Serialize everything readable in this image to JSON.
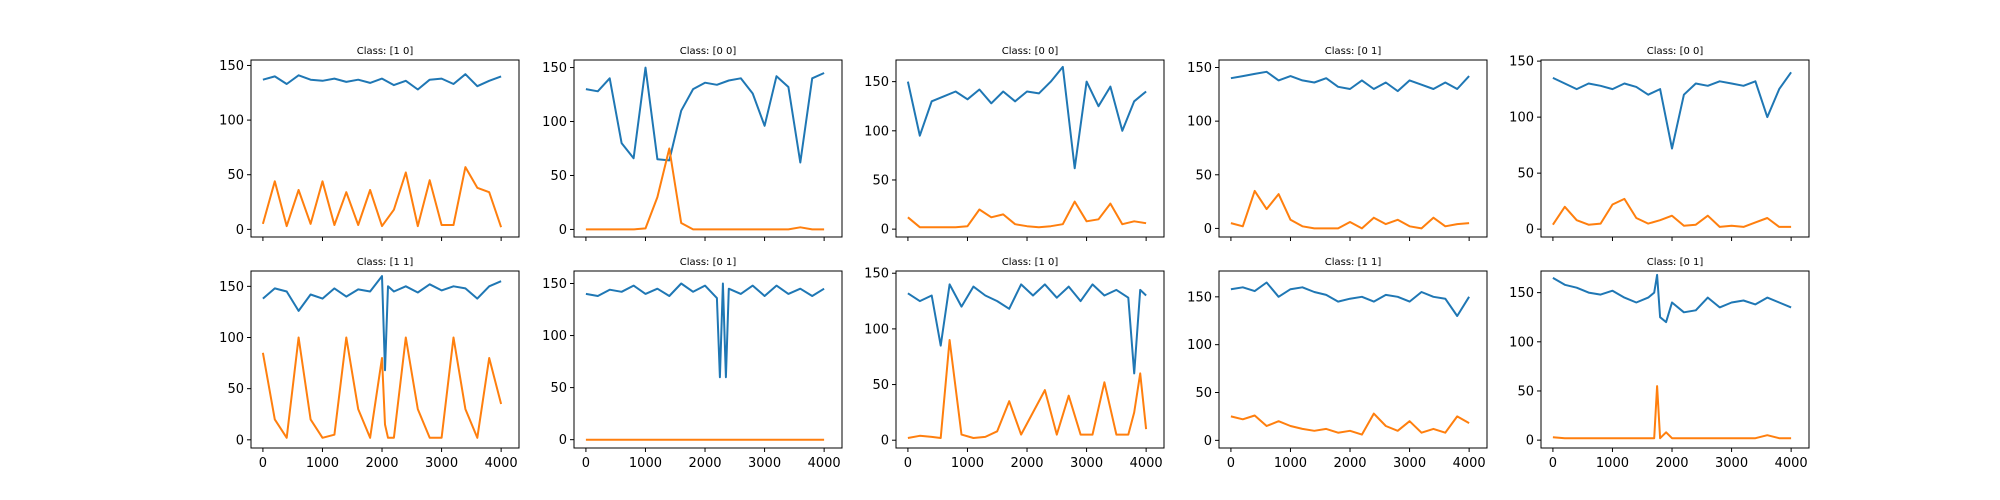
{
  "figure": {
    "background": "#ffffff",
    "series_colors": [
      "#1f77b4",
      "#ff7f0e"
    ]
  },
  "chart_data": [
    {
      "type": "line",
      "title": "Class: [1 0]",
      "xlabel": "",
      "ylabel": "",
      "xlim": [
        -200,
        4300
      ],
      "ylim": [
        -7,
        155
      ],
      "yticks": [
        0,
        50,
        100,
        150
      ],
      "xticks": [
        0,
        1000,
        2000,
        3000,
        4000
      ],
      "show_x_ticklabels": false,
      "x": [
        0,
        200,
        400,
        600,
        800,
        1000,
        1200,
        1400,
        1600,
        1800,
        2000,
        2200,
        2400,
        2600,
        2800,
        3000,
        3200,
        3400,
        3600,
        3800,
        4000
      ],
      "series": [
        {
          "color": "#1f77b4",
          "values": [
            137,
            140,
            133,
            141,
            137,
            136,
            138,
            135,
            137,
            134,
            138,
            132,
            136,
            128,
            137,
            138,
            133,
            142,
            131,
            136,
            140
          ]
        },
        {
          "color": "#ff7f0e",
          "values": [
            5,
            44,
            3,
            36,
            5,
            44,
            4,
            34,
            4,
            36,
            3,
            18,
            52,
            3,
            45,
            4,
            4,
            57,
            38,
            34,
            2
          ]
        }
      ]
    },
    {
      "type": "line",
      "title": "Class: [0 0]",
      "xlabel": "",
      "ylabel": "",
      "xlim": [
        -200,
        4300
      ],
      "ylim": [
        -7,
        157
      ],
      "yticks": [
        0,
        50,
        100,
        150
      ],
      "xticks": [
        0,
        1000,
        2000,
        3000,
        4000
      ],
      "show_x_ticklabels": false,
      "x": [
        0,
        200,
        400,
        600,
        800,
        1000,
        1200,
        1400,
        1600,
        1800,
        2000,
        2200,
        2400,
        2600,
        2800,
        3000,
        3200,
        3400,
        3600,
        3800,
        4000
      ],
      "series": [
        {
          "color": "#1f77b4",
          "values": [
            130,
            128,
            140,
            80,
            66,
            150,
            65,
            64,
            110,
            130,
            136,
            134,
            138,
            140,
            126,
            96,
            142,
            132,
            62,
            140,
            145
          ]
        },
        {
          "color": "#ff7f0e",
          "values": [
            0,
            0,
            0,
            0,
            0,
            1,
            30,
            75,
            6,
            0,
            0,
            0,
            0,
            0,
            0,
            0,
            0,
            0,
            2,
            0,
            0
          ]
        }
      ]
    },
    {
      "type": "line",
      "title": "Class: [0 0]",
      "xlabel": "",
      "ylabel": "",
      "xlim": [
        -200,
        4300
      ],
      "ylim": [
        -8,
        172
      ],
      "yticks": [
        0,
        50,
        100,
        150
      ],
      "xticks": [
        0,
        1000,
        2000,
        3000,
        4000
      ],
      "show_x_ticklabels": false,
      "x": [
        0,
        200,
        400,
        600,
        800,
        1000,
        1200,
        1400,
        1600,
        1800,
        2000,
        2200,
        2400,
        2600,
        2800,
        3000,
        3200,
        3400,
        3600,
        3800,
        4000
      ],
      "series": [
        {
          "color": "#1f77b4",
          "values": [
            150,
            95,
            130,
            135,
            140,
            132,
            142,
            128,
            140,
            130,
            140,
            138,
            150,
            165,
            62,
            150,
            125,
            145,
            100,
            130,
            140
          ]
        },
        {
          "color": "#ff7f0e",
          "values": [
            12,
            2,
            2,
            2,
            2,
            3,
            20,
            12,
            15,
            5,
            3,
            2,
            3,
            5,
            28,
            8,
            10,
            26,
            5,
            8,
            6
          ]
        }
      ]
    },
    {
      "type": "line",
      "title": "Class: [0 1]",
      "xlabel": "",
      "ylabel": "",
      "xlim": [
        -200,
        4300
      ],
      "ylim": [
        -8,
        157
      ],
      "yticks": [
        0,
        50,
        100,
        150
      ],
      "xticks": [
        0,
        1000,
        2000,
        3000,
        4000
      ],
      "show_x_ticklabels": false,
      "x": [
        0,
        200,
        400,
        600,
        800,
        1000,
        1200,
        1400,
        1600,
        1800,
        2000,
        2200,
        2400,
        2600,
        2800,
        3000,
        3200,
        3400,
        3600,
        3800,
        4000
      ],
      "series": [
        {
          "color": "#1f77b4",
          "values": [
            140,
            142,
            144,
            146,
            138,
            142,
            138,
            136,
            140,
            132,
            130,
            138,
            130,
            136,
            128,
            138,
            134,
            130,
            136,
            130,
            142
          ]
        },
        {
          "color": "#ff7f0e",
          "values": [
            5,
            2,
            35,
            18,
            32,
            8,
            2,
            0,
            0,
            0,
            6,
            0,
            10,
            4,
            8,
            2,
            0,
            10,
            2,
            4,
            5
          ]
        }
      ]
    },
    {
      "type": "line",
      "title": "Class: [0 0]",
      "xlabel": "",
      "ylabel": "",
      "xlim": [
        -200,
        4300
      ],
      "ylim": [
        -7,
        151
      ],
      "yticks": [
        0,
        50,
        100,
        150
      ],
      "xticks": [
        0,
        1000,
        2000,
        3000,
        4000
      ],
      "show_x_ticklabels": false,
      "x": [
        0,
        200,
        400,
        600,
        800,
        1000,
        1200,
        1400,
        1600,
        1800,
        2000,
        2200,
        2400,
        2600,
        2800,
        3000,
        3200,
        3400,
        3600,
        3800,
        4000
      ],
      "series": [
        {
          "color": "#1f77b4",
          "values": [
            135,
            130,
            125,
            130,
            128,
            125,
            130,
            127,
            120,
            125,
            72,
            120,
            130,
            128,
            132,
            130,
            128,
            132,
            100,
            125,
            140
          ]
        },
        {
          "color": "#ff7f0e",
          "values": [
            4,
            20,
            8,
            4,
            5,
            22,
            27,
            10,
            5,
            8,
            12,
            3,
            4,
            12,
            2,
            3,
            2,
            6,
            10,
            2,
            2
          ]
        }
      ]
    },
    {
      "type": "line",
      "title": "Class: [1 1]",
      "xlabel": "",
      "ylabel": "",
      "xlim": [
        -200,
        4300
      ],
      "ylim": [
        -8,
        165
      ],
      "yticks": [
        0,
        50,
        100,
        150
      ],
      "xticks": [
        0,
        1000,
        2000,
        3000,
        4000
      ],
      "show_x_ticklabels": true,
      "x": [
        0,
        200,
        400,
        600,
        800,
        1000,
        1200,
        1400,
        1600,
        1800,
        2000,
        2050,
        2100,
        2200,
        2400,
        2600,
        2800,
        3000,
        3200,
        3400,
        3600,
        3800,
        4000
      ],
      "series": [
        {
          "color": "#1f77b4",
          "values": [
            138,
            148,
            145,
            126,
            142,
            138,
            148,
            140,
            147,
            145,
            160,
            68,
            150,
            145,
            150,
            144,
            152,
            146,
            150,
            148,
            138,
            150,
            155
          ]
        },
        {
          "color": "#ff7f0e",
          "values": [
            85,
            20,
            2,
            100,
            20,
            2,
            5,
            100,
            30,
            2,
            80,
            15,
            2,
            2,
            100,
            30,
            2,
            2,
            100,
            30,
            2,
            80,
            35
          ]
        }
      ]
    },
    {
      "type": "line",
      "title": "Class: [0 1]",
      "xlabel": "",
      "ylabel": "",
      "xlim": [
        -200,
        4300
      ],
      "ylim": [
        -8,
        162
      ],
      "yticks": [
        0,
        50,
        100,
        150
      ],
      "xticks": [
        0,
        1000,
        2000,
        3000,
        4000
      ],
      "show_x_ticklabels": true,
      "x": [
        0,
        200,
        400,
        600,
        800,
        1000,
        1200,
        1400,
        1600,
        1800,
        2000,
        2200,
        2250,
        2300,
        2350,
        2400,
        2600,
        2800,
        3000,
        3200,
        3400,
        3600,
        3800,
        4000
      ],
      "series": [
        {
          "color": "#1f77b4",
          "values": [
            140,
            138,
            144,
            142,
            148,
            140,
            145,
            138,
            150,
            142,
            148,
            136,
            60,
            150,
            60,
            145,
            140,
            148,
            138,
            148,
            140,
            145,
            138,
            145
          ]
        },
        {
          "color": "#ff7f0e",
          "values": [
            0,
            0,
            0,
            0,
            0,
            0,
            0,
            0,
            0,
            0,
            0,
            0,
            0,
            0,
            0,
            0,
            0,
            0,
            0,
            0,
            0,
            0,
            0,
            0
          ]
        }
      ]
    },
    {
      "type": "line",
      "title": "Class: [1 0]",
      "xlabel": "",
      "ylabel": "",
      "xlim": [
        -200,
        4300
      ],
      "ylim": [
        -7,
        152
      ],
      "yticks": [
        0,
        50,
        100,
        150
      ],
      "xticks": [
        0,
        1000,
        2000,
        3000,
        4000
      ],
      "show_x_ticklabels": true,
      "x": [
        0,
        200,
        400,
        550,
        700,
        900,
        1100,
        1300,
        1500,
        1700,
        1900,
        2100,
        2300,
        2500,
        2700,
        2900,
        3100,
        3300,
        3500,
        3700,
        3800,
        3900,
        4000
      ],
      "series": [
        {
          "color": "#1f77b4",
          "values": [
            132,
            125,
            130,
            85,
            140,
            120,
            138,
            130,
            125,
            118,
            140,
            130,
            140,
            128,
            138,
            125,
            140,
            130,
            135,
            128,
            60,
            135,
            130
          ]
        },
        {
          "color": "#ff7f0e",
          "values": [
            2,
            4,
            3,
            2,
            90,
            5,
            2,
            3,
            8,
            35,
            5,
            25,
            45,
            5,
            40,
            5,
            5,
            52,
            5,
            5,
            25,
            60,
            10
          ]
        }
      ]
    },
    {
      "type": "line",
      "title": "Class: [1 1]",
      "xlabel": "",
      "ylabel": "",
      "xlim": [
        -200,
        4300
      ],
      "ylim": [
        -8,
        177
      ],
      "yticks": [
        0,
        50,
        100,
        150
      ],
      "xticks": [
        0,
        1000,
        2000,
        3000,
        4000
      ],
      "show_x_ticklabels": true,
      "x": [
        0,
        200,
        400,
        600,
        800,
        1000,
        1200,
        1400,
        1600,
        1800,
        2000,
        2200,
        2400,
        2600,
        2800,
        3000,
        3200,
        3400,
        3600,
        3800,
        4000
      ],
      "series": [
        {
          "color": "#1f77b4",
          "values": [
            158,
            160,
            156,
            165,
            150,
            158,
            160,
            155,
            152,
            145,
            148,
            150,
            145,
            152,
            150,
            145,
            155,
            150,
            148,
            130,
            150
          ]
        },
        {
          "color": "#ff7f0e",
          "values": [
            25,
            22,
            26,
            15,
            20,
            15,
            12,
            10,
            12,
            8,
            10,
            6,
            28,
            15,
            10,
            20,
            8,
            12,
            8,
            25,
            18
          ]
        }
      ]
    },
    {
      "type": "line",
      "title": "Class: [0 1]",
      "xlabel": "",
      "ylabel": "",
      "xlim": [
        -200,
        4300
      ],
      "ylim": [
        -8,
        172
      ],
      "yticks": [
        0,
        50,
        100,
        150
      ],
      "xticks": [
        0,
        1000,
        2000,
        3000,
        4000
      ],
      "show_x_ticklabels": true,
      "x": [
        0,
        200,
        400,
        600,
        800,
        1000,
        1200,
        1400,
        1600,
        1700,
        1750,
        1800,
        1900,
        2000,
        2200,
        2400,
        2600,
        2800,
        3000,
        3200,
        3400,
        3600,
        3800,
        4000
      ],
      "series": [
        {
          "color": "#1f77b4",
          "values": [
            165,
            158,
            155,
            150,
            148,
            152,
            145,
            140,
            145,
            150,
            168,
            125,
            120,
            140,
            130,
            132,
            145,
            135,
            140,
            142,
            138,
            145,
            140,
            135
          ]
        },
        {
          "color": "#ff7f0e",
          "values": [
            3,
            2,
            2,
            2,
            2,
            2,
            2,
            2,
            2,
            2,
            55,
            2,
            8,
            2,
            2,
            2,
            2,
            2,
            2,
            2,
            2,
            5,
            2,
            2
          ]
        }
      ]
    }
  ]
}
